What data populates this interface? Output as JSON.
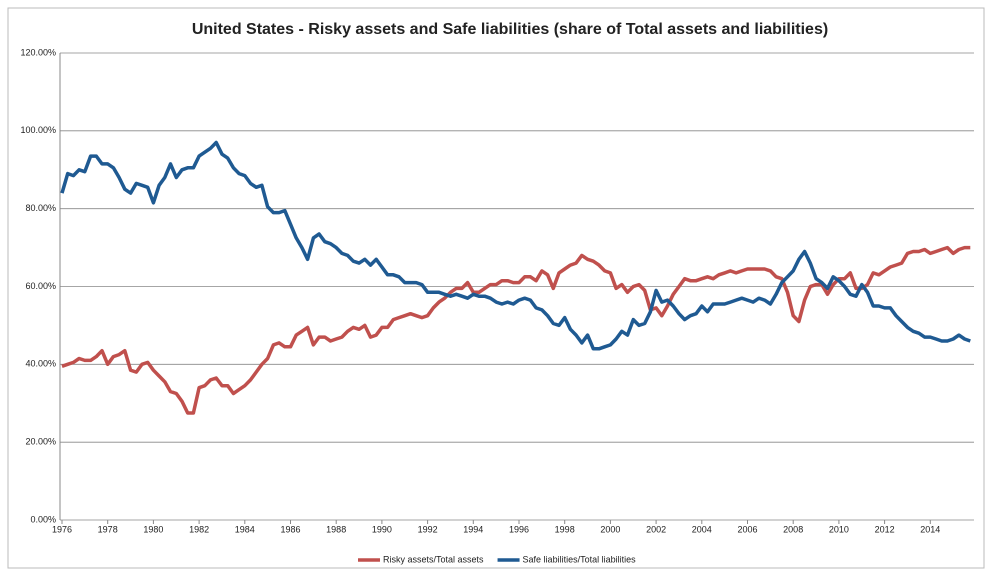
{
  "chart_data": {
    "type": "line",
    "title": "United States - Risky assets and Safe liabilities (share of Total assets and liabilities)",
    "categories": [
      "1976",
      null,
      null,
      null,
      null,
      null,
      null,
      null,
      "1978",
      null,
      null,
      null,
      null,
      null,
      null,
      null,
      "1980",
      null,
      null,
      null,
      null,
      null,
      null,
      null,
      "1982",
      null,
      null,
      null,
      null,
      null,
      null,
      null,
      "1984",
      null,
      null,
      null,
      null,
      null,
      null,
      null,
      "1986",
      null,
      null,
      null,
      null,
      null,
      null,
      null,
      "1988",
      null,
      null,
      null,
      null,
      null,
      null,
      null,
      "1990",
      null,
      null,
      null,
      null,
      null,
      null,
      null,
      "1992",
      null,
      null,
      null,
      null,
      null,
      null,
      null,
      "1994",
      null,
      null,
      null,
      null,
      null,
      null,
      null,
      "1996",
      null,
      null,
      null,
      null,
      null,
      null,
      null,
      "1998",
      null,
      null,
      null,
      null,
      null,
      null,
      null,
      "2000",
      null,
      null,
      null,
      null,
      null,
      null,
      null,
      "2002",
      null,
      null,
      null,
      null,
      null,
      null,
      null,
      "2004",
      null,
      null,
      null,
      null,
      null,
      null,
      null,
      "2006",
      null,
      null,
      null,
      null,
      null,
      null,
      null,
      "2008",
      null,
      null,
      null,
      null,
      null,
      null,
      null,
      "2010",
      null,
      null,
      null,
      null,
      null,
      null,
      null,
      "2012",
      null,
      null,
      null,
      null,
      null,
      null,
      null,
      "2014",
      null,
      null,
      null,
      null,
      null,
      null,
      null
    ],
    "series": [
      {
        "name": "Risky assets/Total assets",
        "color": "#c0504d",
        "values": [
          39.5,
          40,
          40.5,
          41.5,
          41,
          41,
          42,
          43.5,
          40,
          42,
          42.5,
          43.5,
          38.5,
          38,
          40,
          40.5,
          38.5,
          37,
          35.5,
          33,
          32.5,
          30.5,
          27.5,
          27.5,
          34,
          34.5,
          36,
          36.5,
          34.5,
          34.5,
          32.5,
          33.5,
          34.5,
          36,
          38,
          40,
          41.5,
          45,
          45.5,
          44.5,
          44.5,
          47.5,
          48.5,
          49.5,
          45,
          47,
          47,
          46,
          46.5,
          47,
          48.5,
          49.5,
          49,
          50,
          47,
          47.5,
          49.5,
          49.5,
          51.5,
          52,
          52.5,
          53,
          52.5,
          52,
          52.5,
          54.5,
          56,
          57,
          58.5,
          59.5,
          59.5,
          61,
          58.5,
          58.5,
          59.5,
          60.5,
          60.5,
          61.5,
          61.5,
          61,
          61,
          62.5,
          62.5,
          61.5,
          64,
          63,
          59.5,
          63.5,
          64.5,
          65.5,
          66,
          68,
          67,
          66.5,
          65.5,
          64,
          63.5,
          59.5,
          60.5,
          58.5,
          60,
          60.5,
          59,
          54,
          54.5,
          52.5,
          55,
          58,
          60,
          62,
          61.5,
          61.5,
          62,
          62.5,
          62,
          63,
          63.5,
          64,
          63.5,
          64,
          64.5,
          64.5,
          64.5,
          64.5,
          64,
          62.5,
          62,
          58.5,
          52.5,
          51,
          56.5,
          60,
          60.5,
          60.5,
          58,
          60.5,
          62,
          62,
          63.5,
          59.5,
          59.5,
          60.5,
          63.5,
          63,
          64,
          65,
          65.5,
          66,
          68.5,
          69,
          69,
          69.5,
          68.5,
          69,
          69.5,
          70,
          68.5,
          69.5,
          70,
          70
        ]
      },
      {
        "name": "Safe liabilities/Total liabilities",
        "color": "#1f5a92",
        "values": [
          84,
          89,
          88.5,
          90,
          89.5,
          93.5,
          93.5,
          91.5,
          91.5,
          90.5,
          88,
          85,
          84,
          86.5,
          86,
          85.5,
          81.5,
          86,
          88,
          91.5,
          88,
          90,
          90.5,
          90.5,
          93.5,
          94.5,
          95.5,
          97,
          94,
          93,
          90.5,
          89,
          88.5,
          86.5,
          85.5,
          86,
          80.5,
          79,
          79,
          79.5,
          76,
          72.5,
          70,
          67,
          72.5,
          73.5,
          71.5,
          71,
          70,
          68.5,
          68,
          66.5,
          66,
          67,
          65.5,
          67,
          65,
          63,
          63,
          62.5,
          61,
          61,
          61,
          60.5,
          58.5,
          58.5,
          58.5,
          58,
          57.5,
          58,
          57.5,
          57,
          58,
          57.5,
          57.5,
          57,
          56,
          55.5,
          56,
          55.5,
          56.5,
          57,
          56.5,
          54.5,
          54,
          52.5,
          50.5,
          50,
          52,
          49,
          47.5,
          45.5,
          47.5,
          44,
          44,
          44.5,
          45,
          46.5,
          48.5,
          47.5,
          51.5,
          50,
          50.5,
          53.5,
          59,
          56,
          56.5,
          55,
          53,
          51.5,
          52.5,
          53,
          55,
          53.5,
          55.5,
          55.5,
          55.5,
          56,
          56.5,
          57,
          56.5,
          56,
          57,
          56.5,
          55.5,
          58,
          61,
          62.5,
          64,
          67,
          69,
          66,
          62,
          61,
          59.5,
          62.5,
          61.5,
          60,
          58,
          57.5,
          60.5,
          58.5,
          55,
          55,
          54.5,
          54.5,
          52.5,
          51,
          49.5,
          48.5,
          48,
          47,
          47,
          46.5,
          46,
          46,
          46.5,
          47.5,
          46.5,
          46
        ]
      }
    ],
    "ylim": [
      0,
      120
    ],
    "yticks": [
      {
        "value": 0,
        "label": "0.00%"
      },
      {
        "value": 20,
        "label": "20.00%"
      },
      {
        "value": 40,
        "label": "40.00%"
      },
      {
        "value": 60,
        "label": "60.00%"
      },
      {
        "value": 80,
        "label": "80.00%"
      },
      {
        "value": 100,
        "label": "100.00%"
      },
      {
        "value": 120,
        "label": "120.00%"
      }
    ],
    "grid": true,
    "legend": "bottom"
  }
}
